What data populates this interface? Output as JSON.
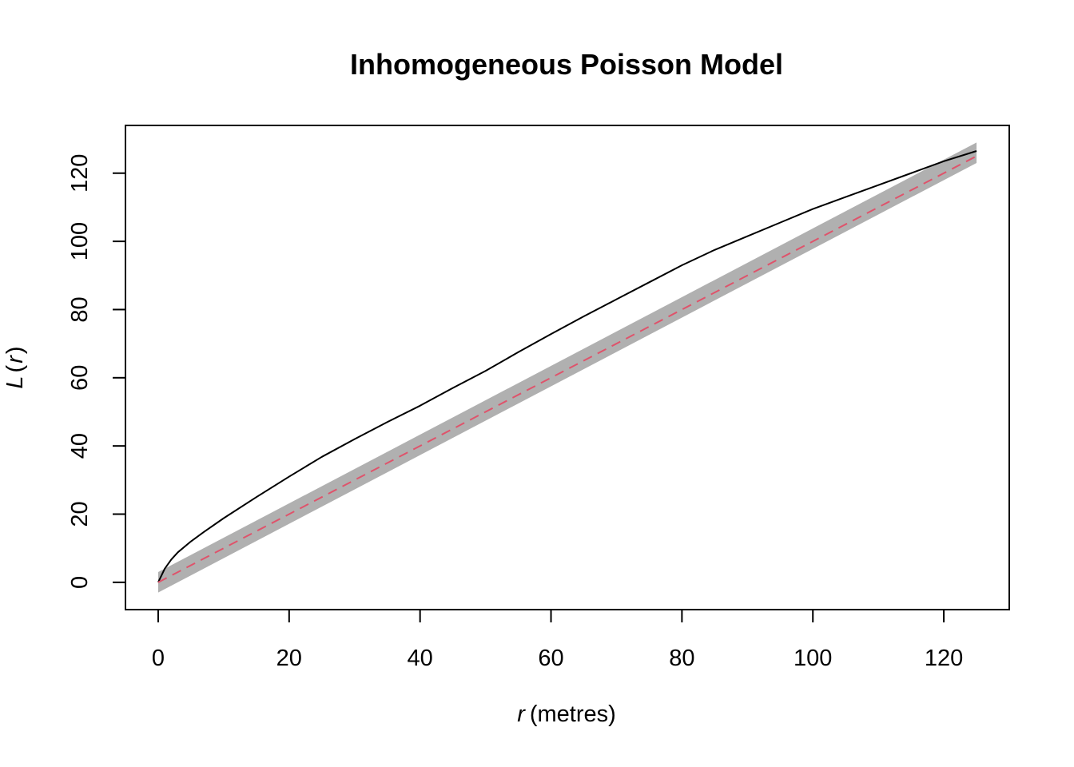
{
  "chart_data": {
    "type": "line",
    "title": "Inhomogeneous Poisson Model",
    "xlabel": {
      "var": "r",
      "unit": "(metres)"
    },
    "ylabel": {
      "func": "L",
      "open": "(",
      "var": "r",
      "close": ")"
    },
    "xlim": [
      -5,
      130
    ],
    "ylim": [
      -8,
      134
    ],
    "x_ticks": [
      0,
      20,
      40,
      60,
      80,
      100,
      120
    ],
    "y_ticks": [
      0,
      20,
      40,
      60,
      80,
      100,
      120
    ],
    "grid": false,
    "legend": "none",
    "colors": {
      "observed": "#000000",
      "theoretical": "#DF536B",
      "envelope": "#B0B0B0"
    },
    "envelope": {
      "x": [
        0,
        125
      ],
      "lower": [
        -3,
        123
      ],
      "upper": [
        3,
        129
      ]
    },
    "series": [
      {
        "style": "solid",
        "x": [
          0,
          1,
          2,
          3,
          5,
          7,
          10,
          15,
          20,
          25,
          30,
          35,
          40,
          45,
          50,
          55,
          60,
          65,
          70,
          75,
          80,
          85,
          90,
          95,
          100,
          105,
          110,
          115,
          120,
          125
        ],
        "y": [
          0,
          4,
          6.7,
          8.8,
          12,
          14.8,
          18.8,
          25,
          31,
          36.8,
          42,
          47,
          51.8,
          57,
          62,
          67.5,
          72.8,
          78,
          83,
          88,
          93,
          97.5,
          101.5,
          105.5,
          109.5,
          113,
          116.5,
          120,
          123.5,
          126.5
        ]
      },
      {
        "style": "dashed",
        "x": [
          0,
          125
        ],
        "y": [
          0,
          125
        ]
      }
    ]
  }
}
